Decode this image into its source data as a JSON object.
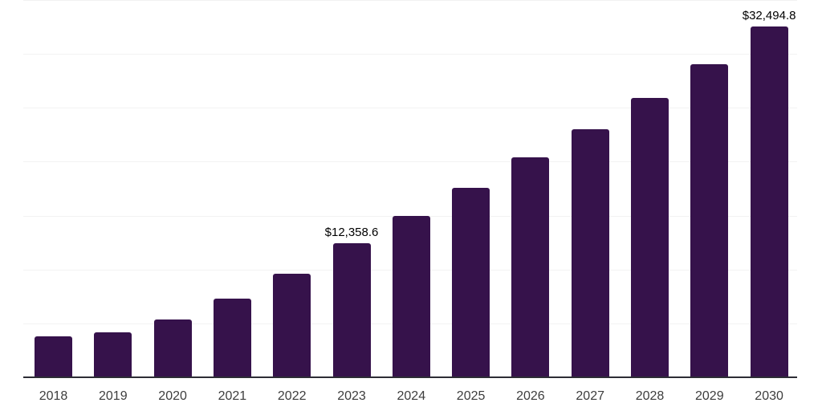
{
  "colors": {
    "background": "#ffffff",
    "bar": "#36124b",
    "gridline": "#f2f2f2",
    "axis_line": "#2d2d35",
    "tick_label": "#3d3d3d",
    "value_label": "#000000"
  },
  "chart_data": {
    "type": "bar",
    "title": "",
    "xlabel": "",
    "ylabel": "",
    "categories": [
      "2018",
      "2019",
      "2020",
      "2021",
      "2022",
      "2023",
      "2024",
      "2025",
      "2026",
      "2027",
      "2028",
      "2029",
      "2030"
    ],
    "values": [
      3700,
      4100,
      5300,
      7250,
      9500,
      12358.6,
      14900,
      17500,
      20300,
      22950,
      25850,
      28950,
      32494.8
    ],
    "value_labels": {
      "2023": "$12,358.6",
      "2030": "$32,494.8"
    },
    "ylim": [
      0,
      35000
    ],
    "gridline_interval": 5000,
    "grid": "horizontal-only",
    "y_axis_tick_labels": "none",
    "legend": "none",
    "series_count": 1
  }
}
